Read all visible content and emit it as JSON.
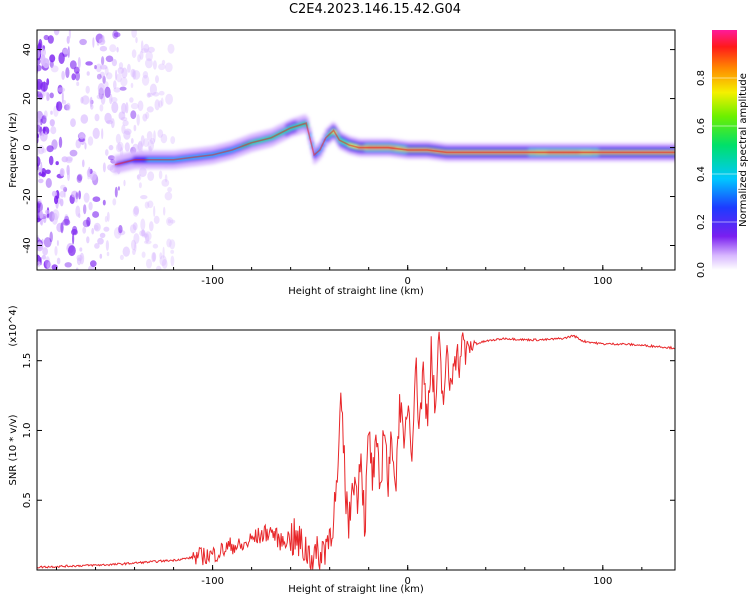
{
  "title": "C2E4.2023.146.15.42.G04",
  "colors": {
    "snr_line": "#e8272a",
    "ridge_core": "#e8272a",
    "noise": "#7a1ff0"
  },
  "chart_data": [
    {
      "type": "heatmap",
      "xlabel": "Height of straight line (km)",
      "ylabel": "Frequency (Hz)",
      "xlim": [
        -190,
        137
      ],
      "ylim": [
        -50,
        48
      ],
      "xticks": [
        -100,
        0,
        100
      ],
      "xtick_labels": [
        "-100",
        "0",
        "100"
      ],
      "yticks": [
        -40,
        -20,
        0,
        20,
        40
      ],
      "ytick_labels": [
        "-40",
        "-20",
        "0",
        "20",
        "40"
      ],
      "colorbar": {
        "label": "Normalized spectral amplitude",
        "range": [
          0,
          1
        ],
        "ticks": [
          0.0,
          0.2,
          0.4,
          0.6,
          0.8
        ],
        "tick_labels": [
          "0.0",
          "0.2",
          "0.4",
          "0.6",
          "0.8"
        ],
        "colormap": "rainbow: white-violet-blue-cyan-green-yellow-red-magenta"
      },
      "ridge": {
        "x": [
          -150,
          -140,
          -130,
          -120,
          -110,
          -100,
          -90,
          -80,
          -70,
          -60,
          -52,
          -48,
          -45,
          -42,
          -38,
          -35,
          -30,
          -25,
          -20,
          -10,
          0,
          10,
          20,
          40,
          60,
          80,
          100,
          120,
          137
        ],
        "y": [
          -7,
          -5,
          -5,
          -5,
          -4,
          -3,
          -1,
          2,
          4,
          8,
          10,
          -3,
          -1,
          4,
          7,
          3,
          1,
          0,
          0,
          0,
          -1,
          -1,
          -2,
          -2,
          -2,
          -2,
          -2,
          -2,
          -2
        ],
        "amplitude": [
          0.2,
          0.35,
          0.4,
          0.4,
          0.45,
          0.45,
          0.5,
          0.55,
          0.55,
          0.6,
          0.55,
          0.35,
          0.45,
          0.5,
          0.8,
          0.7,
          0.75,
          0.85,
          0.95,
          0.95,
          0.9,
          0.85,
          0.85,
          0.9,
          0.9,
          0.95,
          0.9,
          0.9,
          0.9
        ]
      },
      "noise_region_x": [
        -190,
        -120
      ]
    },
    {
      "type": "line",
      "xlabel": "Height of straight line (km)",
      "ylabel": "SNR (10 * v/v)",
      "y_multiplier": "(x10^4)",
      "xlim": [
        -190,
        137
      ],
      "ylim": [
        0.0,
        1.72
      ],
      "xticks": [
        -100,
        0,
        100
      ],
      "xtick_labels": [
        "-100",
        "0",
        "100"
      ],
      "yticks": [
        0.5,
        1.0,
        1.5
      ],
      "ytick_labels": [
        "0.5",
        "1.0",
        "1.5"
      ],
      "series": [
        {
          "x": [
            -190,
            -170,
            -150,
            -130,
            -120,
            -110,
            -100,
            -95,
            -90,
            -85,
            -80,
            -75,
            -70,
            -65,
            -60,
            -55,
            -50,
            -45,
            -42,
            -40,
            -38,
            -36,
            -34,
            -32,
            -30,
            -28,
            -26,
            -24,
            -22,
            -20,
            -18,
            -16,
            -14,
            -12,
            -10,
            -8,
            -6,
            -4,
            -2,
            0,
            2,
            4,
            6,
            8,
            10,
            12,
            14,
            16,
            18,
            20,
            22,
            24,
            26,
            28,
            30,
            35,
            40,
            50,
            60,
            70,
            80,
            85,
            90,
            100,
            110,
            120,
            130,
            137
          ],
          "y": [
            0.02,
            0.03,
            0.04,
            0.06,
            0.07,
            0.09,
            0.11,
            0.14,
            0.18,
            0.16,
            0.22,
            0.25,
            0.28,
            0.2,
            0.24,
            0.18,
            0.12,
            0.08,
            0.2,
            0.25,
            0.4,
            0.6,
            1.22,
            0.6,
            0.3,
            0.72,
            0.5,
            0.88,
            0.3,
            0.98,
            0.65,
            0.86,
            0.55,
            1.12,
            0.58,
            0.98,
            0.6,
            1.28,
            0.78,
            1.25,
            0.88,
            1.48,
            1.05,
            1.42,
            1.1,
            1.58,
            1.12,
            1.6,
            1.22,
            1.5,
            1.3,
            1.62,
            1.48,
            1.6,
            1.58,
            1.62,
            1.64,
            1.66,
            1.65,
            1.65,
            1.66,
            1.68,
            1.64,
            1.62,
            1.62,
            1.61,
            1.6,
            1.59
          ]
        }
      ]
    }
  ]
}
